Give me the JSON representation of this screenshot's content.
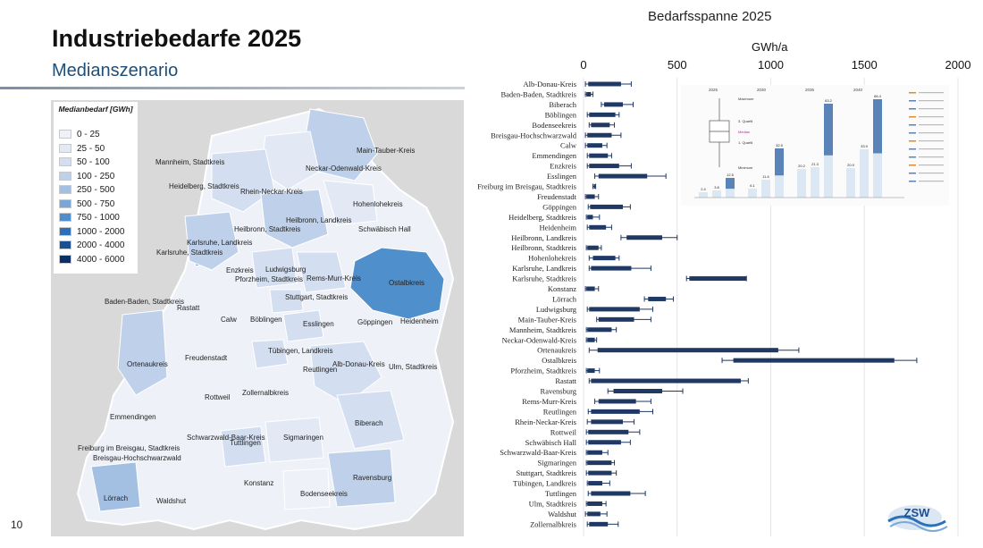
{
  "header": {
    "title": "Industriebedarfe 2025",
    "subtitle": "Medianszenario",
    "page_number": "10"
  },
  "legend": {
    "title": "Medianbedarf [GWh]",
    "items": [
      {
        "label": "0 - 25",
        "color": "#eef2f8"
      },
      {
        "label": "25 - 50",
        "color": "#e2e9f4"
      },
      {
        "label": "50 - 100",
        "color": "#d3dff0"
      },
      {
        "label": "100 - 250",
        "color": "#bfd1ea"
      },
      {
        "label": "250 - 500",
        "color": "#a3bfe2"
      },
      {
        "label": "500 - 750",
        "color": "#7aa7d6"
      },
      {
        "label": "750 - 1000",
        "color": "#4f8fcc"
      },
      {
        "label": "1000 - 2000",
        "color": "#2d6fb8"
      },
      {
        "label": "2000 - 4000",
        "color": "#1a4f94"
      },
      {
        "label": "4000 - 6000",
        "color": "#0c2f66"
      }
    ]
  },
  "map": {
    "labels": [
      "Main-Tauber-Kreis",
      "Neckar-Odenwald-Kreis",
      "Mannheim, Stadtkreis",
      "Heidelberg, Stadtkreis",
      "Rhein-Neckar-Kreis",
      "Hohenlohekreis",
      "Heilbronn, Landkreis",
      "Heilbronn, Stadtkreis",
      "Schwäbisch Hall",
      "Karlsruhe, Landkreis",
      "Karlsruhe, Stadtkreis",
      "Enzkreis",
      "Ludwigsburg",
      "Pforzheim, Stadtkreis",
      "Rems-Murr-Kreis",
      "Ostalbkreis",
      "Stuttgart, Stadtkreis",
      "Baden-Baden, Stadtkreis",
      "Rastatt",
      "Calw",
      "Böblingen",
      "Esslingen",
      "Göppingen",
      "Heidenheim",
      "Ortenaukreis",
      "Freudenstadt",
      "Tübingen, Landkreis",
      "Reutlingen",
      "Alb-Donau-Kreis",
      "Ulm, Stadtkreis",
      "Rottweil",
      "Zollernalbkreis",
      "Emmendingen",
      "Schwarzwald-Baar-Kreis",
      "Tuttlingen",
      "Sigmaringen",
      "Biberach",
      "Freiburg im Breisgau, Stadtkreis",
      "Breisgau-Hochschwarzwald",
      "Konstanz",
      "Bodenseekreis",
      "Ravensburg",
      "Lörrach",
      "Waldshut"
    ]
  },
  "chart": {
    "title": "Bedarfsspanne 2025",
    "unit": "GWh/a"
  },
  "chart_data": {
    "type": "boxplot",
    "title": "Bedarfsspanne 2025",
    "xlabel": "GWh/a",
    "xlim": [
      0,
      2000
    ],
    "xticks": [
      0,
      500,
      1000,
      1500,
      2000
    ],
    "categories": [
      "Alb-Donau-Kreis",
      "Baden-Baden, Stadtkreis",
      "Biberach",
      "Böblingen",
      "Bodenseekreis",
      "Breisgau-Hochschwarzwald",
      "Calw",
      "Emmendingen",
      "Enzkreis",
      "Esslingen",
      "Freiburg im Breisgau, Stadtkreis",
      "Freudenstadt",
      "Göppingen",
      "Heidelberg, Stadtkreis",
      "Heidenheim",
      "Heilbronn, Landkreis",
      "Heilbronn, Stadtkreis",
      "Hohenlohekreis",
      "Karlsruhe, Landkreis",
      "Karlsruhe, Stadtkreis",
      "Konstanz",
      "Lörrach",
      "Ludwigsburg",
      "Main-Tauber-Kreis",
      "Mannheim, Stadtkreis",
      "Neckar-Odenwald-Kreis",
      "Ortenaukreis",
      "Ostalbkreis",
      "Pforzheim, Stadtkreis",
      "Rastatt",
      "Ravensburg",
      "Rems-Murr-Kreis",
      "Reutlingen",
      "Rhein-Neckar-Kreis",
      "Rottweil",
      "Schwäbisch Hall",
      "Schwarzwald-Baar-Kreis",
      "Sigmaringen",
      "Stuttgart, Stadtkreis",
      "Tübingen, Landkreis",
      "Tuttlingen",
      "Ulm, Stadtkreis",
      "Waldshut",
      "Zollernalbkreis"
    ],
    "ranges": [
      [
        10,
        25,
        200,
        255
      ],
      [
        10,
        15,
        40,
        50
      ],
      [
        95,
        110,
        210,
        265
      ],
      [
        20,
        30,
        170,
        190
      ],
      [
        30,
        40,
        140,
        165
      ],
      [
        10,
        20,
        150,
        200
      ],
      [
        10,
        20,
        100,
        125
      ],
      [
        20,
        30,
        130,
        150
      ],
      [
        20,
        30,
        190,
        255
      ],
      [
        60,
        80,
        340,
        440
      ],
      [
        50,
        55,
        60,
        65
      ],
      [
        10,
        15,
        60,
        80
      ],
      [
        25,
        35,
        210,
        250
      ],
      [
        15,
        20,
        50,
        85
      ],
      [
        20,
        30,
        120,
        150
      ],
      [
        200,
        230,
        420,
        500
      ],
      [
        15,
        20,
        80,
        95
      ],
      [
        30,
        50,
        170,
        190
      ],
      [
        30,
        40,
        255,
        360
      ],
      [
        550,
        565,
        870,
        870
      ],
      [
        10,
        15,
        60,
        80
      ],
      [
        325,
        345,
        440,
        480
      ],
      [
        20,
        30,
        300,
        370
      ],
      [
        70,
        80,
        270,
        360
      ],
      [
        15,
        20,
        150,
        175
      ],
      [
        15,
        20,
        60,
        70
      ],
      [
        30,
        75,
        1040,
        1150
      ],
      [
        740,
        800,
        1660,
        1780
      ],
      [
        15,
        20,
        60,
        85
      ],
      [
        30,
        40,
        840,
        880
      ],
      [
        130,
        160,
        420,
        530
      ],
      [
        60,
        80,
        280,
        360
      ],
      [
        25,
        40,
        300,
        370
      ],
      [
        20,
        40,
        210,
        270
      ],
      [
        15,
        25,
        240,
        300
      ],
      [
        15,
        25,
        200,
        250
      ],
      [
        15,
        20,
        100,
        130
      ],
      [
        15,
        20,
        150,
        165
      ],
      [
        15,
        25,
        150,
        175
      ],
      [
        20,
        25,
        100,
        140
      ],
      [
        25,
        40,
        250,
        330
      ],
      [
        15,
        20,
        100,
        120
      ],
      [
        10,
        20,
        90,
        125
      ],
      [
        20,
        30,
        130,
        185
      ]
    ]
  },
  "inset": {
    "years": [
      "2025",
      "2030",
      "2035",
      "2040"
    ],
    "value_labels": [
      "2.4",
      "3.8",
      "12.5",
      "6.1",
      "11.6",
      "32.5",
      "20.2",
      "21.3",
      "63.2",
      "20.9",
      "33.9",
      "66.4"
    ],
    "group_labels": [
      "Maximum",
      "Minimum",
      "Median",
      "1. Quartil",
      "3. Quartil"
    ]
  },
  "logo": {
    "text": "ZSW"
  },
  "colors": {
    "bar": "#1f3864",
    "accent": "#1f4e79"
  }
}
